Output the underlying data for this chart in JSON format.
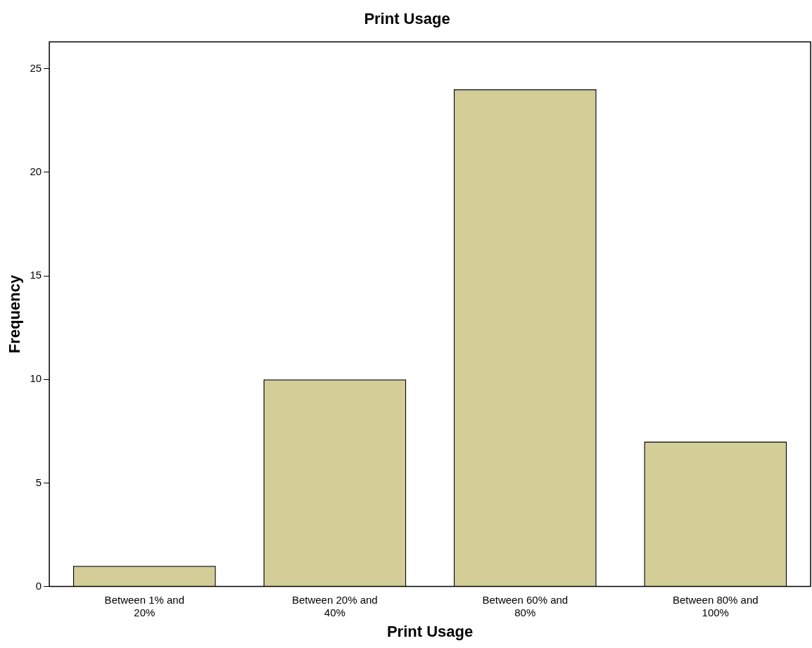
{
  "chart_data": {
    "type": "bar",
    "title": "Print Usage",
    "xlabel": "Print Usage",
    "ylabel": "Frequency",
    "categories": [
      "Between 1% and 20%",
      "Between 20% and 40%",
      "Between 60% and 80%",
      "Between 80% and 100%"
    ],
    "values": [
      1,
      10,
      24,
      7
    ],
    "color": "#d3cd97",
    "ylim": [
      0,
      26.3
    ],
    "yticks": [
      0,
      5,
      10,
      15,
      20,
      25
    ],
    "grid": false,
    "legend": false
  }
}
